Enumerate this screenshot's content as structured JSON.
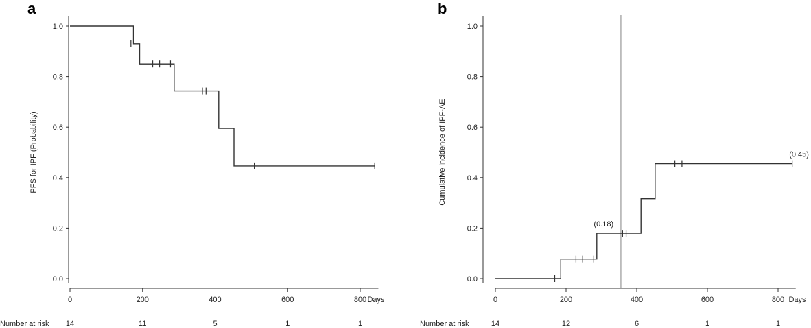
{
  "panels": [
    {
      "label": "a"
    },
    {
      "label": "b"
    }
  ],
  "chart_data": [
    {
      "type": "line",
      "panel": "a",
      "ylabel": "PFS for IPF (Probability)",
      "xlabel": "Days",
      "xlim": [
        0,
        850
      ],
      "ylim": [
        0,
        1.0
      ],
      "xticks": [
        "0",
        "200",
        "400",
        "600",
        "800"
      ],
      "yticks": [
        "0.0",
        "0.2",
        "0.4",
        "0.6",
        "0.8",
        "1.0"
      ],
      "step": [
        [
          0,
          1.0
        ],
        [
          175,
          1.0
        ],
        [
          175,
          0.93
        ],
        [
          192,
          0.93
        ],
        [
          192,
          0.85
        ],
        [
          287,
          0.85
        ],
        [
          287,
          0.743
        ],
        [
          410,
          0.743
        ],
        [
          410,
          0.595
        ],
        [
          452,
          0.595
        ],
        [
          452,
          0.446
        ],
        [
          840,
          0.446
        ]
      ],
      "censor": [
        [
          168,
          0.93
        ],
        [
          228,
          0.85
        ],
        [
          247,
          0.85
        ],
        [
          277,
          0.85
        ],
        [
          365,
          0.743
        ],
        [
          375,
          0.743
        ],
        [
          508,
          0.446
        ],
        [
          840,
          0.446
        ]
      ],
      "risk_label": "Number at risk",
      "risk_x": [
        0,
        200,
        400,
        600,
        800
      ],
      "risk_values": [
        "14",
        "11",
        "5",
        "1",
        "1"
      ],
      "annotations": []
    },
    {
      "type": "line",
      "panel": "b",
      "ylabel": "Cumulative incidence of IPF-AE",
      "xlabel": "Days",
      "xlim": [
        0,
        850
      ],
      "ylim": [
        0,
        1.0
      ],
      "xticks": [
        "0",
        "200",
        "400",
        "600",
        "800"
      ],
      "yticks": [
        "0.0",
        "0.2",
        "0.4",
        "0.6",
        "0.8",
        "1.0"
      ],
      "step": [
        [
          0,
          0.0
        ],
        [
          185,
          0.0
        ],
        [
          185,
          0.077
        ],
        [
          287,
          0.077
        ],
        [
          287,
          0.179
        ],
        [
          412,
          0.179
        ],
        [
          412,
          0.316
        ],
        [
          452,
          0.316
        ],
        [
          452,
          0.455
        ],
        [
          840,
          0.455
        ]
      ],
      "censor": [
        [
          168,
          0.0
        ],
        [
          228,
          0.077
        ],
        [
          247,
          0.077
        ],
        [
          277,
          0.077
        ],
        [
          360,
          0.179
        ],
        [
          370,
          0.179
        ],
        [
          508,
          0.455
        ],
        [
          528,
          0.455
        ],
        [
          840,
          0.455
        ]
      ],
      "vline": 355,
      "risk_label": "Number at risk",
      "risk_x": [
        0,
        200,
        400,
        600,
        800
      ],
      "risk_values": [
        "14",
        "12",
        "6",
        "1",
        "1"
      ],
      "annotations": [
        {
          "text": "(0.18)",
          "x": 287,
          "y": 0.179
        },
        {
          "text": "(0.45)",
          "x": 840,
          "y": 0.455
        }
      ]
    }
  ]
}
